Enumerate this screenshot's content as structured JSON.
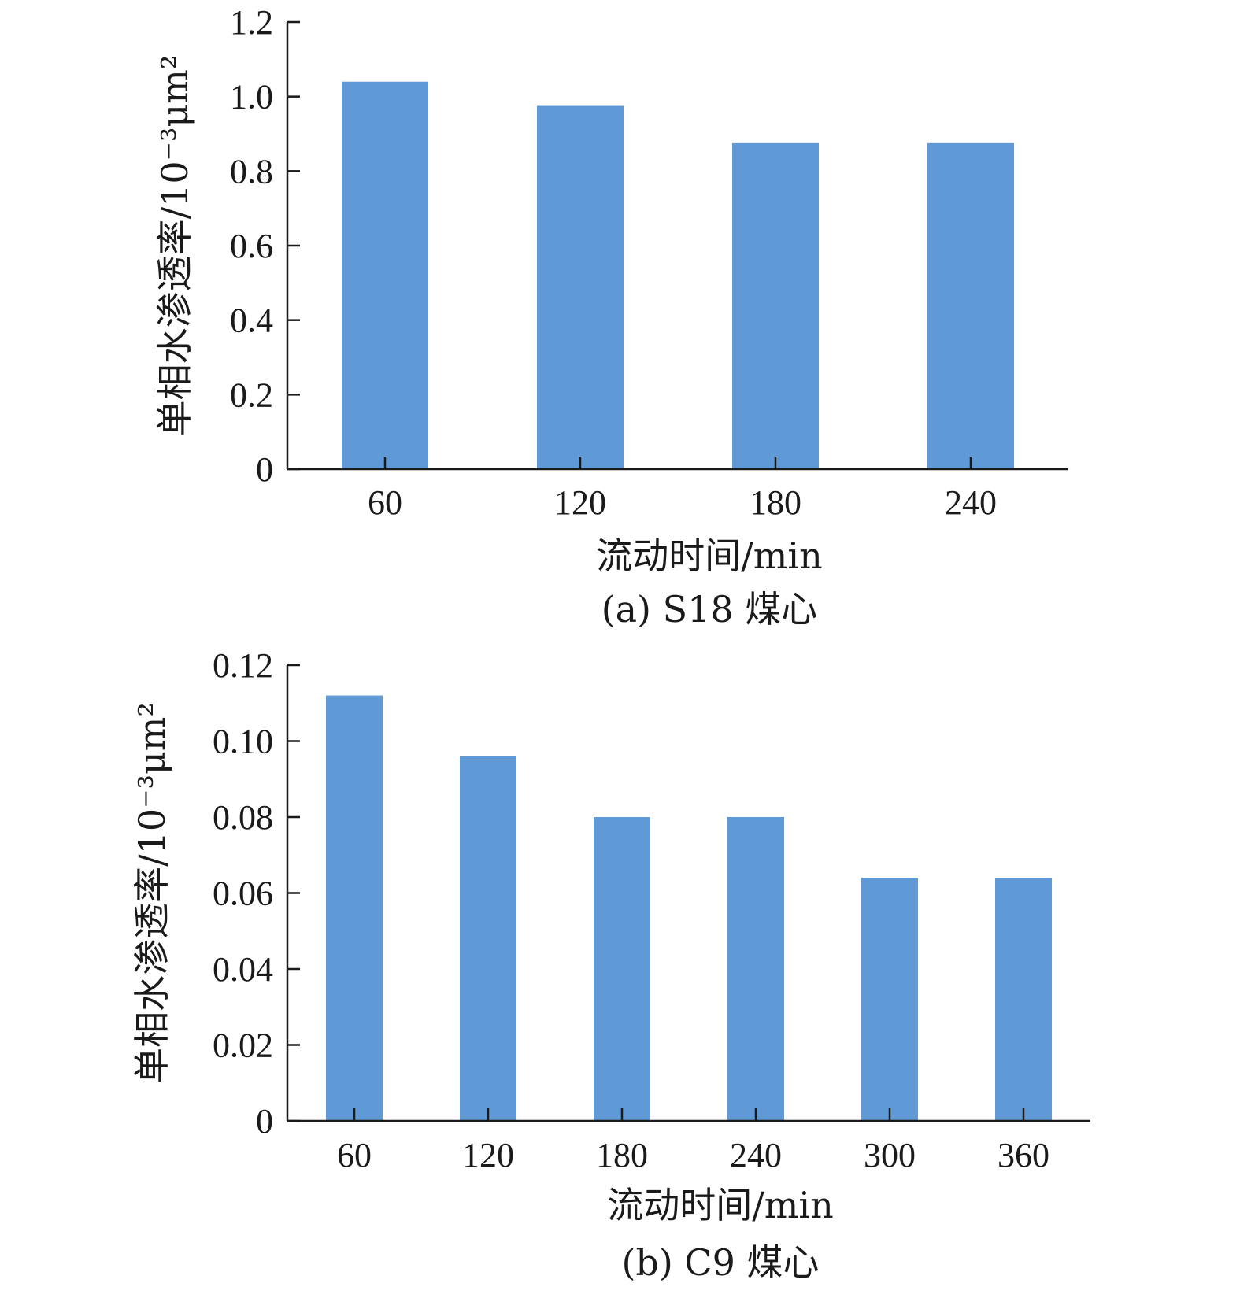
{
  "colors": {
    "bar": "#5f99d6",
    "axis": "#1a1a1a"
  },
  "chart_data": [
    {
      "type": "bar",
      "caption": "(a) S18 煤心",
      "xlabel": "流动时间/min",
      "ylabel": "单相水渗透率/10⁻³μm²",
      "categories": [
        "60",
        "120",
        "180",
        "240"
      ],
      "values": [
        1.04,
        0.975,
        0.875,
        0.875
      ],
      "ylim": [
        0,
        1.2
      ],
      "yticks": [
        "0",
        "0.2",
        "0.4",
        "0.6",
        "0.8",
        "1.0",
        "1.2"
      ],
      "grid": false,
      "legend": "none"
    },
    {
      "type": "bar",
      "caption": "(b) C9 煤心",
      "xlabel": "流动时间/min",
      "ylabel": "单相水渗透率/10⁻³μm²",
      "categories": [
        "60",
        "120",
        "180",
        "240",
        "300",
        "360"
      ],
      "values": [
        0.112,
        0.096,
        0.08,
        0.08,
        0.064,
        0.064
      ],
      "ylim": [
        0,
        0.12
      ],
      "yticks": [
        "0",
        "0.02",
        "0.04",
        "0.06",
        "0.08",
        "0.10",
        "0.12"
      ],
      "grid": false,
      "legend": "none"
    }
  ]
}
